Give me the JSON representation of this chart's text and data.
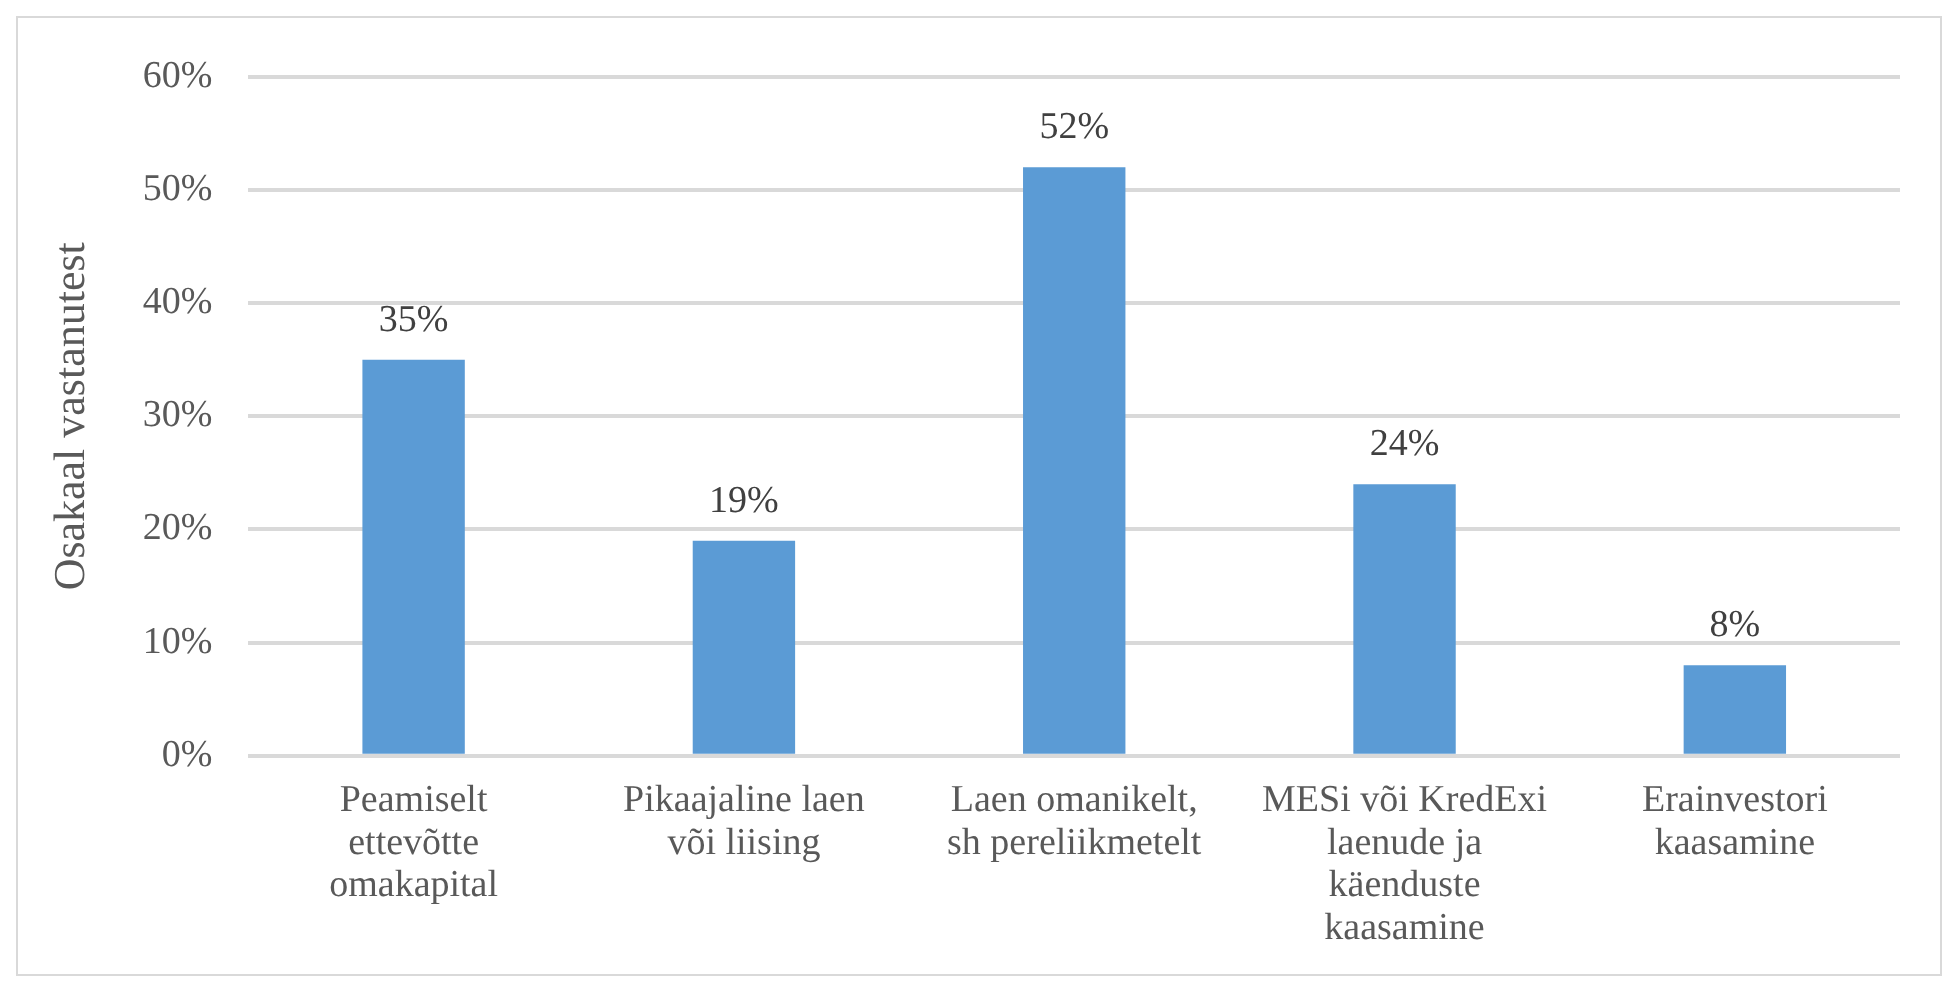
{
  "chart_data": {
    "type": "bar",
    "ylabel": "Osakaal vastanutest",
    "categories": [
      "Peamiselt ettevõtte omakapital",
      "Pikaajaline laen või liising",
      "Laen omanikelt, sh pereliikmetelt",
      "MESi või KredExi laenude ja käenduste kaasamine",
      "Erainvestori kaasamine"
    ],
    "values": [
      35,
      19,
      52,
      24,
      8
    ],
    "value_labels": [
      "35%",
      "19%",
      "52%",
      "24%",
      "8%"
    ],
    "color": "#5b9bd5",
    "ylim": [
      0,
      60
    ],
    "yticks": [
      {
        "value": 0,
        "label": "0%"
      },
      {
        "value": 10,
        "label": "10%"
      },
      {
        "value": 20,
        "label": "20%"
      },
      {
        "value": 30,
        "label": "30%"
      },
      {
        "value": 40,
        "label": "40%"
      },
      {
        "value": 50,
        "label": "50%"
      },
      {
        "value": 60,
        "label": "60%"
      }
    ],
    "grid": "y",
    "legend": false
  }
}
